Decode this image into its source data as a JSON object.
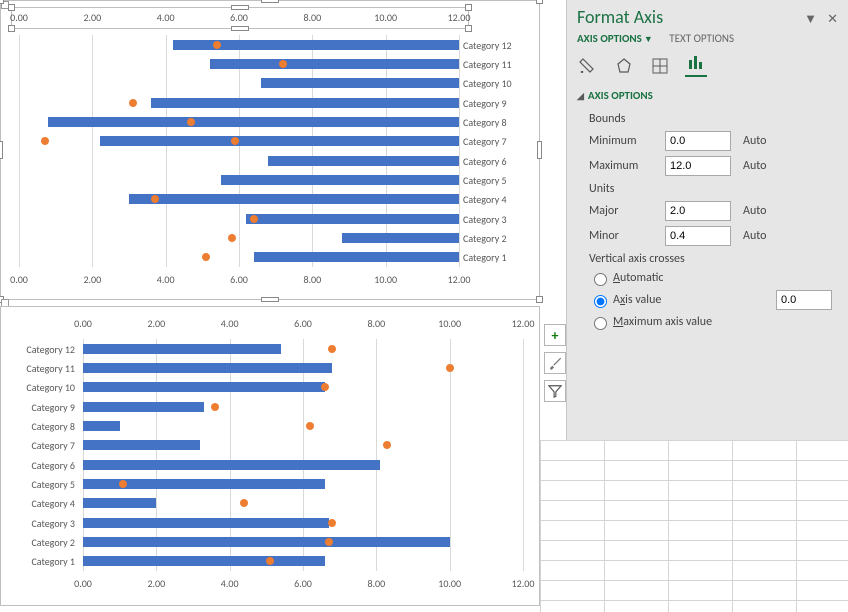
{
  "colors": {
    "bar": "#4472c4",
    "dot": "#ed7d31",
    "grid": "#d9d9d9",
    "axis_text": "#595959",
    "pane_bg": "#e6e6e6",
    "accent": "#1a7243"
  },
  "axis_ticks": [
    "0.00",
    "2.00",
    "4.00",
    "6.00",
    "8.00",
    "10.00",
    "12.00"
  ],
  "axis_min": 0,
  "axis_max": 12,
  "chart_top": {
    "categories": [
      "Category 12",
      "Category 11",
      "Category 10",
      "Category 9",
      "Category 8",
      "Category 7",
      "Category 6",
      "Category 5",
      "Category 4",
      "Category 3",
      "Category 2",
      "Category 1"
    ],
    "bars_start": [
      4.2,
      5.2,
      6.6,
      3.6,
      0.8,
      2.2,
      6.8,
      5.5,
      3.0,
      6.2,
      8.8,
      6.4
    ],
    "bars_end": [
      12,
      12,
      12,
      12,
      12,
      12,
      12,
      12,
      12,
      12,
      12,
      12
    ],
    "dots": [
      5.4,
      7.2,
      null,
      3.1,
      4.7,
      5.9,
      null,
      null,
      3.7,
      6.4,
      5.8,
      5.1
    ],
    "dot_extra_y": {
      "index": 5,
      "dx": 0.24
    },
    "extra_dot": {
      "x": 0.7,
      "row": 5
    }
  },
  "chart_bottom": {
    "categories": [
      "Category 12",
      "Category 11",
      "Category 10",
      "Category 9",
      "Category 8",
      "Category 7",
      "Category 6",
      "Category 5",
      "Category 4",
      "Category 3",
      "Category 2",
      "Category 1"
    ],
    "bars": [
      5.4,
      6.8,
      6.6,
      3.3,
      1.0,
      3.2,
      8.1,
      6.6,
      2.0,
      6.7,
      10.0,
      6.6
    ],
    "dots": [
      6.8,
      10.0,
      6.6,
      3.6,
      6.2,
      8.3,
      null,
      1.1,
      4.4,
      6.8,
      6.7,
      5.1
    ]
  },
  "side_buttons": [
    "+",
    "brush",
    "funnel"
  ],
  "pane": {
    "title": "Format Axis",
    "tabs": {
      "active": "AXIS OPTIONS",
      "inactive": "TEXT OPTIONS"
    },
    "section_title": "AXIS OPTIONS",
    "bounds_label": "Bounds",
    "min_label": "Minimum",
    "min_value": "0.0",
    "min_auto": "Auto",
    "max_label": "Maximum",
    "max_value": "12.0",
    "max_auto": "Auto",
    "units_label": "Units",
    "major_label": "Major",
    "major_value": "2.0",
    "major_auto": "Auto",
    "minor_label": "Minor",
    "minor_value": "0.4",
    "minor_auto": "Auto",
    "vcross_label": "Vertical axis crosses",
    "radio_auto": "Automatic",
    "radio_axisvalue_pre": "A",
    "radio_axisvalue_u": "x",
    "radio_axisvalue_post": "is value",
    "axisvalue_value": "0.0",
    "radio_max_pre": "M",
    "radio_max_u": "a",
    "radio_max_post": "ximum axis value",
    "selected_radio": "axisvalue"
  }
}
